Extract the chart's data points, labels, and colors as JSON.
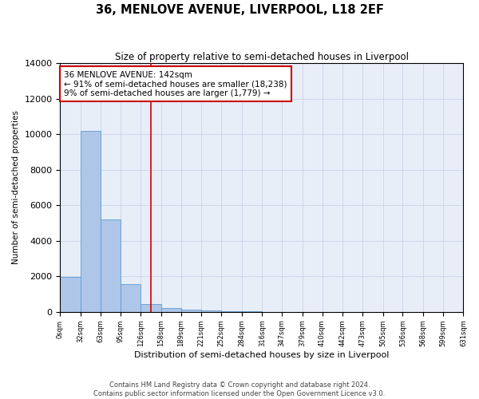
{
  "title": "36, MENLOVE AVENUE, LIVERPOOL, L18 2EF",
  "subtitle": "Size of property relative to semi-detached houses in Liverpool",
  "xlabel": "Distribution of semi-detached houses by size in Liverpool",
  "ylabel": "Number of semi-detached properties",
  "footer_line1": "Contains HM Land Registry data © Crown copyright and database right 2024.",
  "footer_line2": "Contains public sector information licensed under the Open Government Licence v3.0.",
  "annotation_text": "36 MENLOVE AVENUE: 142sqm\n← 91% of semi-detached houses are smaller (18,238)\n9% of semi-detached houses are larger (1,779) →",
  "bin_edges": [
    0,
    32,
    63,
    95,
    126,
    158,
    189,
    221,
    252,
    284,
    316,
    347,
    379,
    410,
    442,
    473,
    505,
    536,
    568,
    599,
    631
  ],
  "bar_values": [
    1950,
    10200,
    5200,
    1550,
    450,
    200,
    120,
    80,
    55,
    20,
    0,
    0,
    0,
    0,
    0,
    0,
    0,
    0,
    0,
    0
  ],
  "bar_color": "#aec6e8",
  "bar_edge_color": "#5b9bd5",
  "vline_x": 142,
  "vline_color": "#cc0000",
  "annotation_box_color": "#cc0000",
  "grid_color": "#c8d4e8",
  "background_color": "#e8eef8",
  "ylim": [
    0,
    14000
  ],
  "yticks": [
    0,
    2000,
    4000,
    6000,
    8000,
    10000,
    12000,
    14000
  ]
}
